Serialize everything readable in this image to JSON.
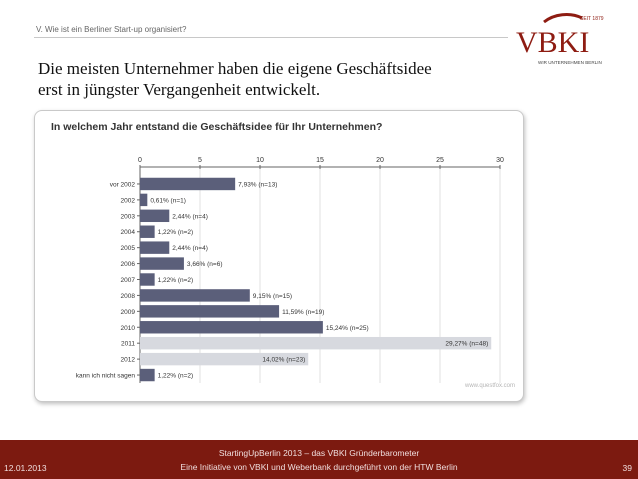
{
  "slide": {
    "section": "V. Wie ist ein Berliner Start-up organisiert?",
    "title_line1": "Die meisten Unternehmer haben die eigene Geschäftsidee",
    "title_line2": "erst in jüngster Vergangenheit entwickelt.",
    "logo": {
      "seit": "SEIT 1879",
      "name": "VBKI",
      "tagline": "WIR UNTERNEHMEN BERLIN"
    },
    "footer": {
      "date": "12.01.2013",
      "line1": "StartingUpBerlin 2013 – das VBKI Gründerbarometer",
      "line2": "Eine Initiative von VBKI und Weberbank durchgeführt von der HTW Berlin",
      "page": "39"
    },
    "colors": {
      "bar_dark": "#5b5f7a",
      "bar_light": "#d7d9df",
      "footer": "#7c1a10",
      "logo_red": "#8e1c12"
    }
  },
  "chart_data": {
    "type": "bar",
    "orientation": "horizontal",
    "title": "In welchem Jahr entstand die Geschäftsidee für Ihr Unternehmen?",
    "categories": [
      "vor 2002",
      "2002",
      "2003",
      "2004",
      "2005",
      "2006",
      "2007",
      "2008",
      "2009",
      "2010",
      "2011",
      "2012",
      "kann ich nicht sagen"
    ],
    "values": [
      7.93,
      0.61,
      2.44,
      1.22,
      2.44,
      3.66,
      1.22,
      9.15,
      11.59,
      15.24,
      29.27,
      14.02,
      1.22
    ],
    "labels": [
      "7,93% (n=13)",
      "0,61% (n=1)",
      "2,44% (n=4)",
      "1,22% (n=2)",
      "2,44% (n=4)",
      "3,66% (n=6)",
      "1,22% (n=2)",
      "9,15% (n=15)",
      "11,59% (n=19)",
      "15,24% (n=25)",
      "29,27% (n=48)",
      "14,02% (n=23)",
      "1,22% (n=2)"
    ],
    "shade": [
      "dark",
      "dark",
      "dark",
      "dark",
      "dark",
      "dark",
      "dark",
      "dark",
      "dark",
      "dark",
      "light",
      "light",
      "dark"
    ],
    "xlim": [
      0,
      30
    ],
    "xticks": [
      0,
      5,
      10,
      15,
      20,
      25,
      30
    ],
    "grid": true,
    "watermark": "www.questfox.com"
  }
}
